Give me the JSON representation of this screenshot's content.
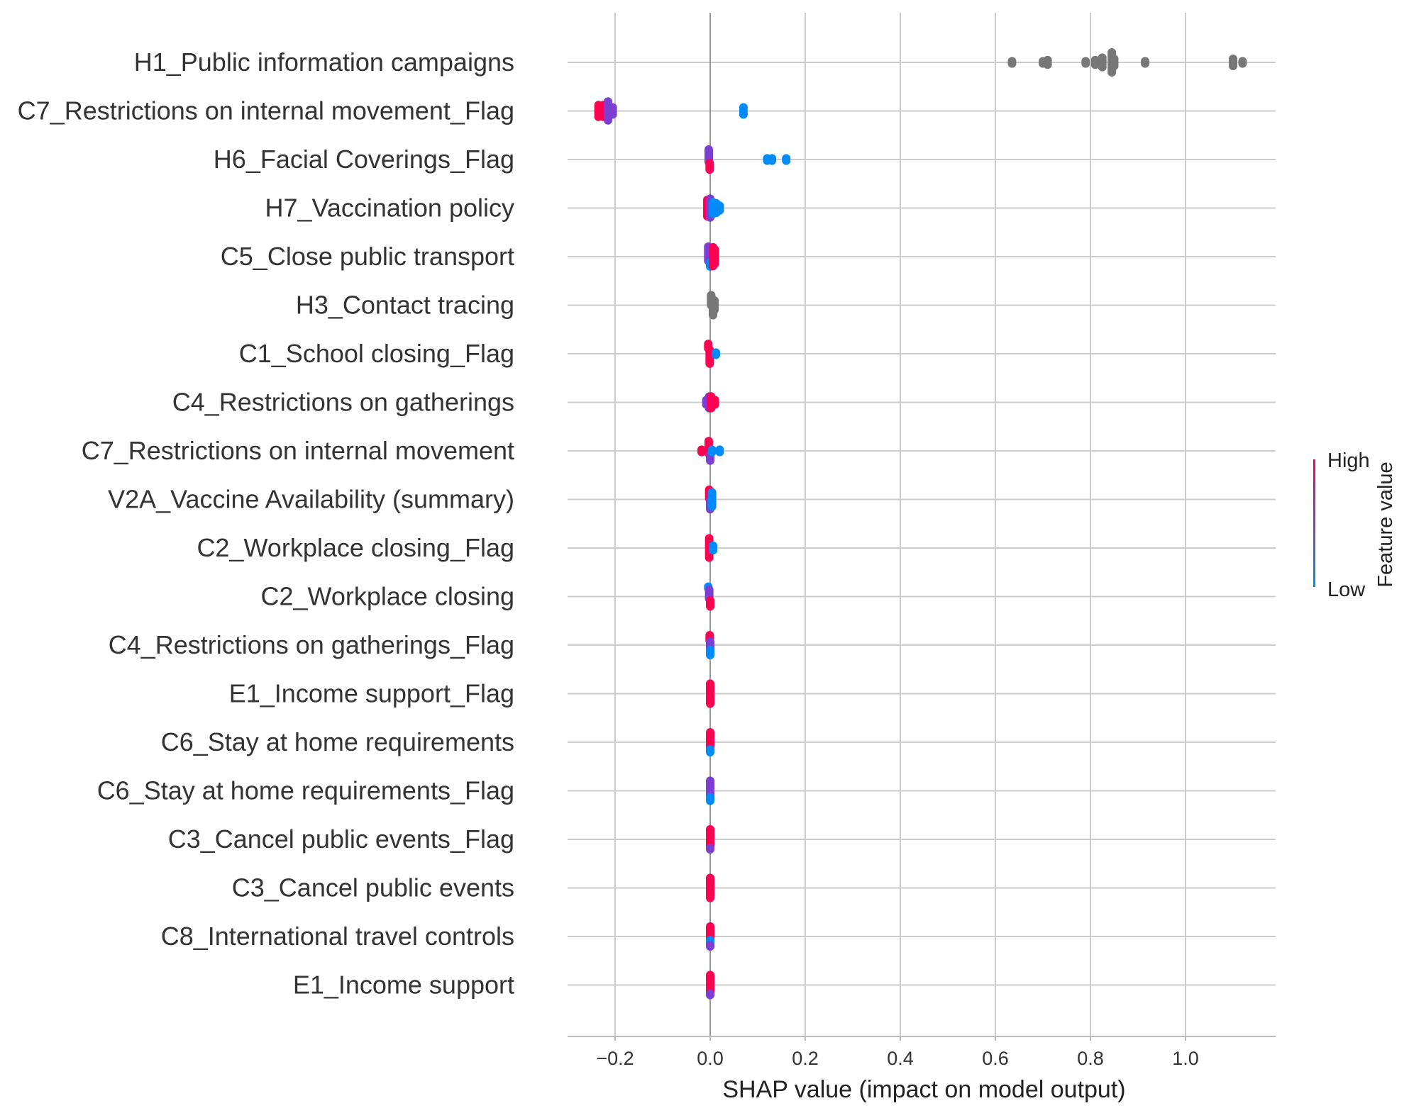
{
  "chart_data": {
    "type": "scatter",
    "subtype": "shap-beeswarm",
    "xlabel": "SHAP value (impact on model output)",
    "xlim": [
      -0.3,
      1.2
    ],
    "xticks": [
      -0.2,
      0.0,
      0.2,
      0.4,
      0.6,
      0.8,
      1.0
    ],
    "xtick_labels": [
      "−0.2",
      "0.0",
      "0.2",
      "0.4",
      "0.6",
      "0.8",
      "1.0"
    ],
    "grid": true,
    "colorbar": {
      "label": "Feature value",
      "high_label": "High",
      "low_label": "Low",
      "high_color": "#ff0052",
      "mid_color": "#7c3fd2",
      "low_color": "#008bfb",
      "missing_color": "#777777"
    },
    "features": [
      {
        "name": "H1_Public information campaigns",
        "points": [
          {
            "x": 0.635,
            "c": "g",
            "n": 2
          },
          {
            "x": 0.7,
            "c": "g",
            "n": 2
          },
          {
            "x": 0.71,
            "c": "g",
            "n": 3
          },
          {
            "x": 0.79,
            "c": "g",
            "n": 2
          },
          {
            "x": 0.81,
            "c": "g",
            "n": 3
          },
          {
            "x": 0.825,
            "c": "g",
            "n": 5
          },
          {
            "x": 0.845,
            "c": "g",
            "n": 15
          },
          {
            "x": 0.85,
            "c": "g",
            "n": 4
          },
          {
            "x": 0.915,
            "c": "g",
            "n": 2
          },
          {
            "x": 1.1,
            "c": "g",
            "n": 4
          },
          {
            "x": 1.12,
            "c": "g",
            "n": 2
          }
        ]
      },
      {
        "name": "C7_Restrictions on internal movement_Flag",
        "points": [
          {
            "x": -0.235,
            "c": "h",
            "n": 6
          },
          {
            "x": -0.225,
            "c": "h",
            "n": 6
          },
          {
            "x": -0.215,
            "c": "m",
            "n": 9
          },
          {
            "x": -0.205,
            "c": "m",
            "n": 4
          },
          {
            "x": 0.07,
            "c": "l",
            "n": 4
          }
        ]
      },
      {
        "name": "H6_Facial Coverings_Flag",
        "points": [
          {
            "x": -0.003,
            "c": "m",
            "n": 11
          },
          {
            "x": -0.001,
            "c": "h",
            "n": 6
          },
          {
            "x": 0.12,
            "c": "l",
            "n": 2
          },
          {
            "x": 0.13,
            "c": "l",
            "n": 2
          },
          {
            "x": 0.16,
            "c": "l",
            "n": 2
          }
        ]
      },
      {
        "name": "H7_Vaccination policy",
        "points": [
          {
            "x": -0.006,
            "c": "h",
            "n": 8
          },
          {
            "x": 0.0,
            "c": "m",
            "n": 9
          },
          {
            "x": 0.006,
            "c": "l",
            "n": 6
          },
          {
            "x": 0.013,
            "c": "l",
            "n": 5
          },
          {
            "x": 0.02,
            "c": "l",
            "n": 3
          }
        ]
      },
      {
        "name": "C5_Close public transport",
        "points": [
          {
            "x": -0.004,
            "c": "m",
            "n": 11
          },
          {
            "x": 0.0,
            "c": "l",
            "n": 4
          },
          {
            "x": 0.006,
            "c": "h",
            "n": 9
          },
          {
            "x": 0.01,
            "c": "h",
            "n": 7
          }
        ]
      },
      {
        "name": "H3_Contact tracing",
        "points": [
          {
            "x": 0.002,
            "c": "g",
            "n": 9
          },
          {
            "x": 0.006,
            "c": "g",
            "n": 8
          },
          {
            "x": 0.009,
            "c": "g",
            "n": 5
          }
        ]
      },
      {
        "name": "C1_School closing_Flag",
        "points": [
          {
            "x": -0.004,
            "c": "h",
            "n": 4
          },
          {
            "x": -0.001,
            "c": "h",
            "n": 10
          },
          {
            "x": 0.012,
            "c": "l",
            "n": 2
          }
        ]
      },
      {
        "name": "C4_Restrictions on gatherings",
        "points": [
          {
            "x": -0.008,
            "c": "m",
            "n": 3
          },
          {
            "x": -0.002,
            "c": "m",
            "n": 6
          },
          {
            "x": 0.002,
            "c": "h",
            "n": 6
          },
          {
            "x": 0.01,
            "c": "h",
            "n": 3
          }
        ]
      },
      {
        "name": "C7_Restrictions on internal movement",
        "points": [
          {
            "x": -0.018,
            "c": "h",
            "n": 2
          },
          {
            "x": -0.003,
            "c": "h",
            "n": 8
          },
          {
            "x": 0.0,
            "c": "m",
            "n": 4
          },
          {
            "x": 0.004,
            "c": "l",
            "n": 2
          },
          {
            "x": 0.02,
            "c": "l",
            "n": 2
          }
        ]
      },
      {
        "name": "V2A_Vaccine Availability (summary)",
        "points": [
          {
            "x": -0.002,
            "c": "h",
            "n": 6
          },
          {
            "x": 0.0,
            "c": "m",
            "n": 6
          },
          {
            "x": 0.004,
            "c": "l",
            "n": 7
          }
        ]
      },
      {
        "name": "C2_Workplace closing_Flag",
        "points": [
          {
            "x": -0.002,
            "c": "h",
            "n": 11
          },
          {
            "x": 0.006,
            "c": "l",
            "n": 3
          }
        ]
      },
      {
        "name": "C2_Workplace closing",
        "points": [
          {
            "x": -0.004,
            "c": "l",
            "n": 2
          },
          {
            "x": -0.002,
            "c": "m",
            "n": 7
          },
          {
            "x": 0.0,
            "c": "h",
            "n": 5
          }
        ]
      },
      {
        "name": "C4_Restrictions on gatherings_Flag",
        "points": [
          {
            "x": -0.001,
            "c": "h",
            "n": 5
          },
          {
            "x": 0.0,
            "c": "m",
            "n": 6
          },
          {
            "x": 0.0,
            "c": "l",
            "n": 5
          }
        ]
      },
      {
        "name": "E1_Income support_Flag",
        "points": [
          {
            "x": 0.0,
            "c": "h",
            "n": 18
          }
        ]
      },
      {
        "name": "C6_Stay at home requirements",
        "points": [
          {
            "x": 0.0,
            "c": "h",
            "n": 12
          },
          {
            "x": 0.0,
            "c": "l",
            "n": 3
          }
        ]
      },
      {
        "name": "C6_Stay at home requirements_Flag",
        "points": [
          {
            "x": 0.0,
            "c": "m",
            "n": 14
          },
          {
            "x": 0.0,
            "c": "l",
            "n": 4
          }
        ]
      },
      {
        "name": "C3_Cancel public events_Flag",
        "points": [
          {
            "x": 0.0,
            "c": "h",
            "n": 15
          },
          {
            "x": 0.0,
            "c": "m",
            "n": 2
          }
        ]
      },
      {
        "name": "C3_Cancel public events",
        "points": [
          {
            "x": 0.0,
            "c": "h",
            "n": 18
          }
        ]
      },
      {
        "name": "C8_International travel controls",
        "points": [
          {
            "x": 0.0,
            "c": "h",
            "n": 11
          },
          {
            "x": 0.0,
            "c": "l",
            "n": 4
          },
          {
            "x": 0.0,
            "c": "m",
            "n": 2
          }
        ]
      },
      {
        "name": "E1_Income support",
        "points": [
          {
            "x": 0.0,
            "c": "h",
            "n": 16
          },
          {
            "x": 0.0,
            "c": "m",
            "n": 2
          }
        ]
      }
    ]
  }
}
